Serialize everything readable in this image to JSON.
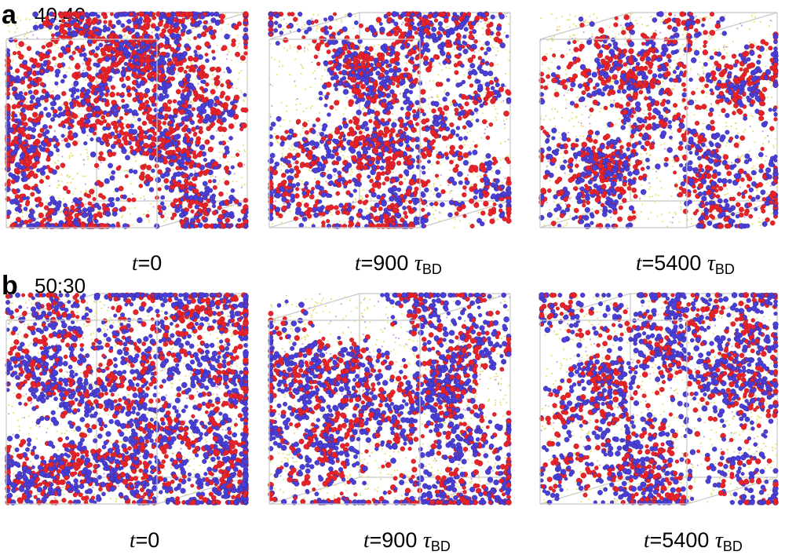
{
  "panels": [
    {
      "letter": "a",
      "ratio": "40:40",
      "times": [
        {
          "t_prefix": "t",
          "eq": "=0",
          "unit": "",
          "sub": "",
          "density": 0.95,
          "blue_ratio": 0.45
        },
        {
          "t_prefix": "t",
          "eq": "=900",
          "unit": "τ",
          "sub": "BD",
          "density": 0.7,
          "blue_ratio": 0.5
        },
        {
          "t_prefix": "t",
          "eq": "=5400",
          "unit": "τ",
          "sub": "BD",
          "density": 0.6,
          "blue_ratio": 0.5
        }
      ]
    },
    {
      "letter": "b",
      "ratio": "50:30",
      "times": [
        {
          "t_prefix": "t",
          "eq": "=0",
          "unit": "",
          "sub": "",
          "density": 0.95,
          "blue_ratio": 0.6
        },
        {
          "t_prefix": "t",
          "eq": "=900",
          "unit": "τ",
          "sub": "BD",
          "density": 0.75,
          "blue_ratio": 0.62
        },
        {
          "t_prefix": "t",
          "eq": "=5400",
          "unit": "τ",
          "sub": "BD",
          "density": 0.68,
          "blue_ratio": 0.62
        }
      ]
    }
  ],
  "colors": {
    "red": "#e8232a",
    "blue": "#4a3fd6",
    "yellow": "#e9e27a",
    "edge": "#c8c8c8"
  }
}
